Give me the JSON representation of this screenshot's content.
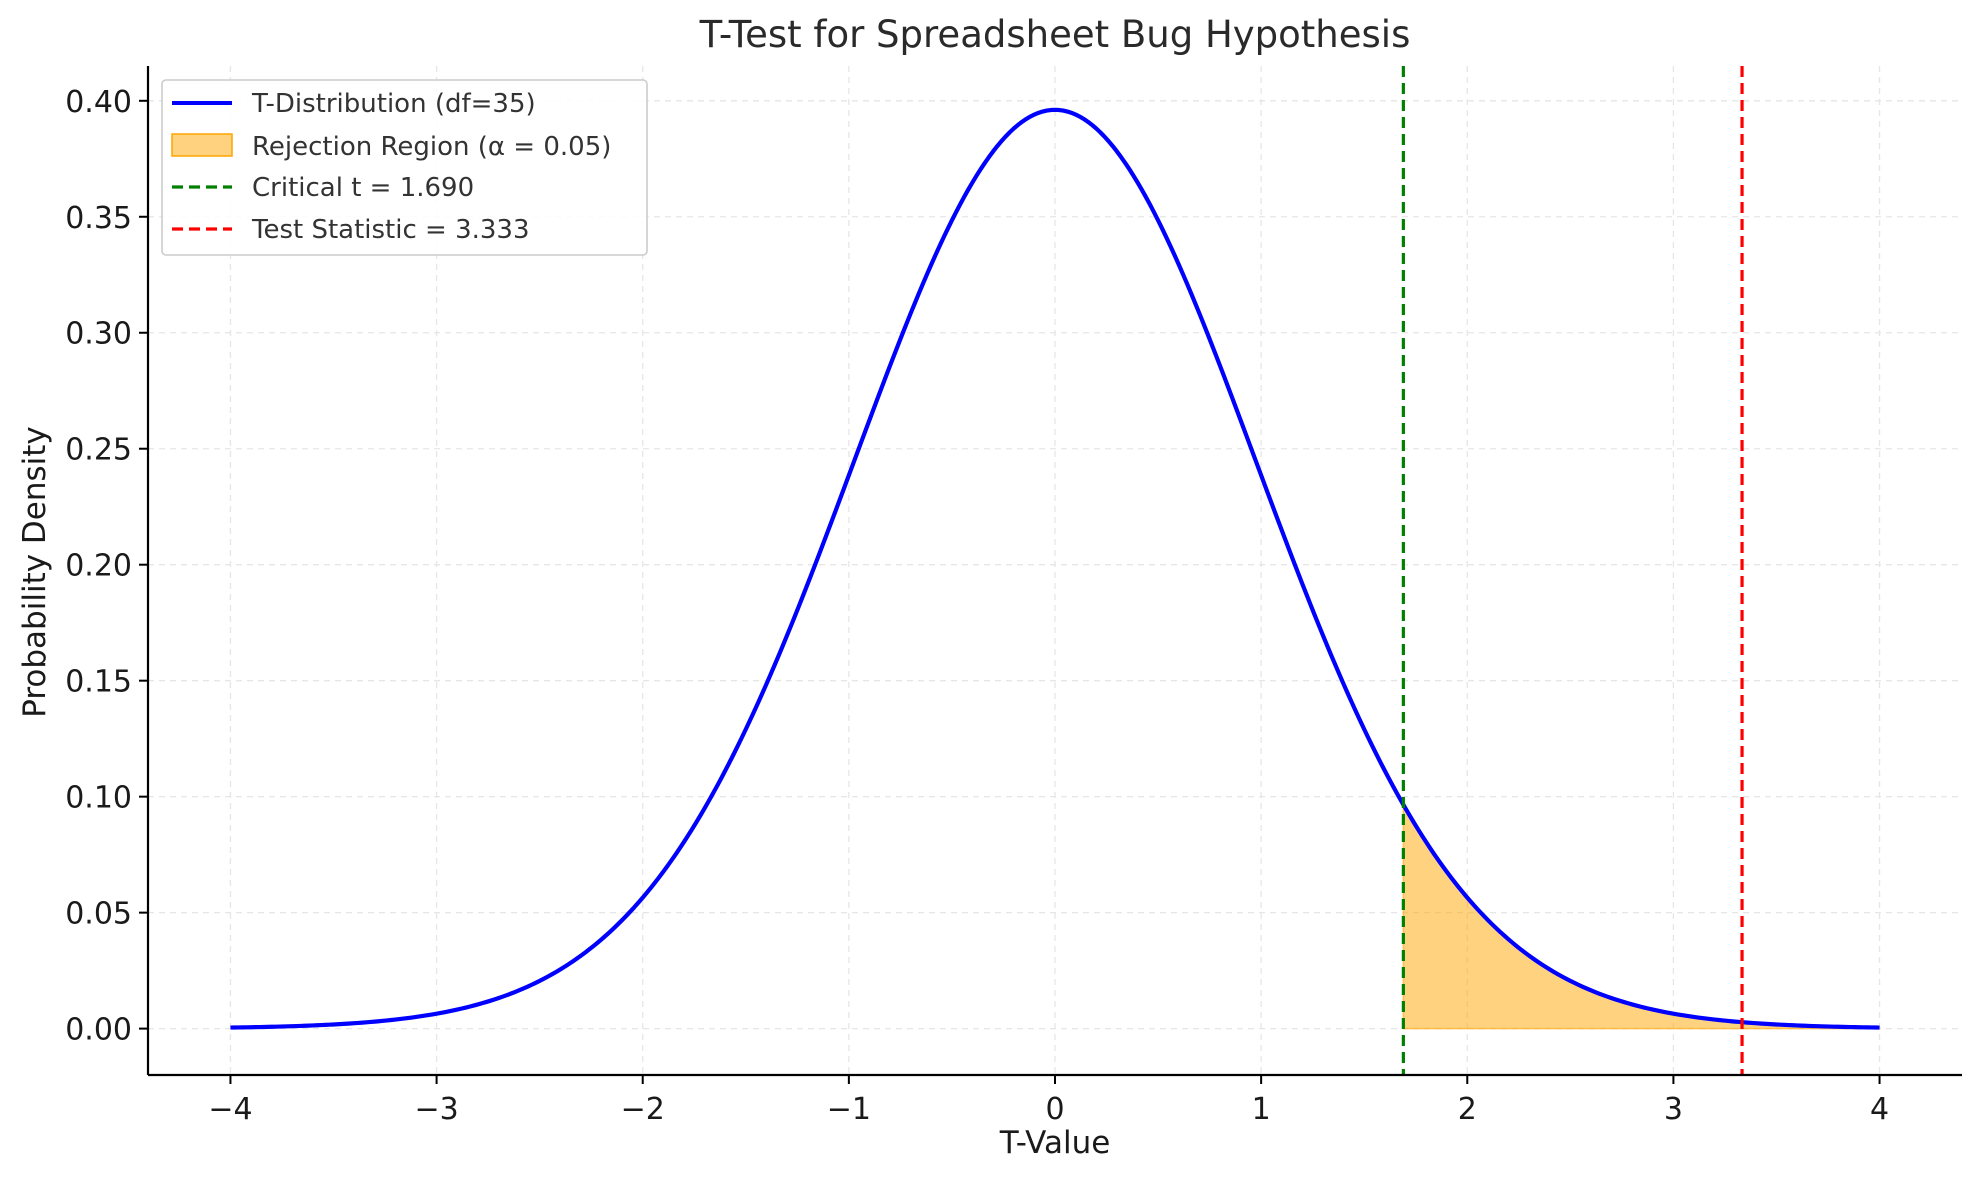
{
  "chart_data": {
    "type": "line",
    "title": "T-Test for Spreadsheet Bug Hypothesis",
    "xlabel": "T-Value",
    "ylabel": "Probability Density",
    "xlim": [
      -4.4,
      4.4
    ],
    "ylim": [
      -0.02,
      0.415
    ],
    "x_ticks": [
      -4,
      -3,
      -2,
      -1,
      0,
      1,
      2,
      3,
      4
    ],
    "x_tick_labels": [
      "−4",
      "−3",
      "−2",
      "−1",
      "0",
      "1",
      "2",
      "3",
      "4"
    ],
    "y_ticks": [
      0.0,
      0.05,
      0.1,
      0.15,
      0.2,
      0.25,
      0.3,
      0.35,
      0.4
    ],
    "y_tick_labels": [
      "0.00",
      "0.05",
      "0.10",
      "0.15",
      "0.20",
      "0.25",
      "0.30",
      "0.35",
      "0.40"
    ],
    "grid": true,
    "legend_position": "upper-left",
    "distribution": {
      "df": 35,
      "x_range": [
        -4,
        4
      ],
      "label": "T-Distribution (df=35)",
      "color": "#0000ff"
    },
    "rejection_region": {
      "x_range": [
        1.69,
        4
      ],
      "label": "Rejection Region (α = 0.05)",
      "color": "#ffa500"
    },
    "critical_line": {
      "x": 1.69,
      "label": "Critical t = 1.690",
      "color": "#008000"
    },
    "test_statistic_line": {
      "x": 3.333,
      "label": "Test Statistic = 3.333",
      "color": "#ff0000"
    }
  }
}
